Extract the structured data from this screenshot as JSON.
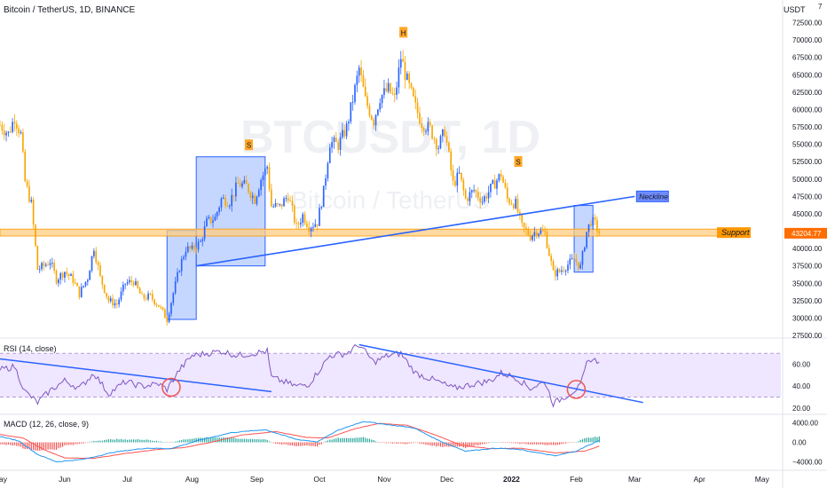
{
  "header": {
    "symbol_title": "Bitcoin / TetherUS, 1D, BINANCE",
    "currency": "USDT"
  },
  "watermark": {
    "line1": "BTCUSDT, 1D",
    "line2": "Bitcoin / TetherUS"
  },
  "colors": {
    "up": "#2962ff",
    "down": "#f7a600",
    "rsi_line": "#7e57c2",
    "rsi_band": "#efe6ff",
    "macd_line": "#2196f3",
    "signal_line": "#ff5252",
    "hist_pos": "#26a69a",
    "hist_neg": "#ef5350",
    "trendline": "#2962ff",
    "support_band": "#ffcc80",
    "box_fill": "#5c8dff",
    "label_bg": "#ff9800",
    "neckline_label_bg": "#6f8cff",
    "price_tag": "#ff6d00"
  },
  "chart_data": [
    {
      "type": "candlestick",
      "title": "Bitcoin / TetherUS, 1D, BINANCE",
      "x_axis": {
        "type": "date",
        "range": [
          "2021-05-01",
          "2022-05-10"
        ],
        "tick_labels": [
          "May",
          "Jun",
          "Jul",
          "Aug",
          "Sep",
          "Oct",
          "Nov",
          "Dec",
          "2022",
          "Feb",
          "Mar",
          "Apr",
          "May"
        ],
        "tick_dates": [
          "2021-05-01",
          "2021-06-01",
          "2021-07-01",
          "2021-08-01",
          "2021-09-01",
          "2021-10-01",
          "2021-11-01",
          "2021-12-01",
          "2022-01-01",
          "2022-02-01",
          "2022-03-01",
          "2022-04-01",
          "2022-05-01"
        ]
      },
      "y_axis": {
        "position": "right",
        "range": [
          27500,
          75000
        ],
        "unit": "USDT",
        "tick_values": [
          27500,
          30000,
          32500,
          35000,
          37500,
          40000,
          42500,
          45000,
          47500,
          50000,
          52500,
          55000,
          57500,
          60000,
          62500,
          65000,
          67500,
          70000,
          72500
        ],
        "tick_labels": [
          "27500.00",
          "30000.00",
          "32500.00",
          "35000.00",
          "37500.00",
          "40000.00",
          "42500.00",
          "45000.00",
          "47500.00",
          "50000.00",
          "52500.00",
          "55000.00",
          "57500.00",
          "60000.00",
          "62500.00",
          "65000.00",
          "67500.00",
          "70000.00",
          "72500.00"
        ],
        "top_partial_label": "7"
      },
      "grid": false,
      "close_series": [
        [
          "2021-05-01",
          57800
        ],
        [
          "2021-05-05",
          56500
        ],
        [
          "2021-05-08",
          58900
        ],
        [
          "2021-05-11",
          56400
        ],
        [
          "2021-05-13",
          49600
        ],
        [
          "2021-05-16",
          46400
        ],
        [
          "2021-05-19",
          37000
        ],
        [
          "2021-05-22",
          37500
        ],
        [
          "2021-05-25",
          38200
        ],
        [
          "2021-05-28",
          35600
        ],
        [
          "2021-06-01",
          36700
        ],
        [
          "2021-06-05",
          35500
        ],
        [
          "2021-06-08",
          33500
        ],
        [
          "2021-06-12",
          35800
        ],
        [
          "2021-06-15",
          40200
        ],
        [
          "2021-06-18",
          35800
        ],
        [
          "2021-06-22",
          32500
        ],
        [
          "2021-06-26",
          32000
        ],
        [
          "2021-06-30",
          35000
        ],
        [
          "2021-07-04",
          35300
        ],
        [
          "2021-07-08",
          32900
        ],
        [
          "2021-07-12",
          33100
        ],
        [
          "2021-07-16",
          31800
        ],
        [
          "2021-07-20",
          29800
        ],
        [
          "2021-07-23",
          33600
        ],
        [
          "2021-07-26",
          37300
        ],
        [
          "2021-07-29",
          40000
        ],
        [
          "2021-08-01",
          39800
        ],
        [
          "2021-08-05",
          40900
        ],
        [
          "2021-08-08",
          43800
        ],
        [
          "2021-08-12",
          44400
        ],
        [
          "2021-08-15",
          47100
        ],
        [
          "2021-08-19",
          46800
        ],
        [
          "2021-08-23",
          49300
        ],
        [
          "2021-08-27",
          49000
        ],
        [
          "2021-08-31",
          47100
        ],
        [
          "2021-09-03",
          50000
        ],
        [
          "2021-09-06",
          51800
        ],
        [
          "2021-09-08",
          46100
        ],
        [
          "2021-09-12",
          46000
        ],
        [
          "2021-09-16",
          47700
        ],
        [
          "2021-09-20",
          43000
        ],
        [
          "2021-09-23",
          44800
        ],
        [
          "2021-09-26",
          43200
        ],
        [
          "2021-09-30",
          43800
        ],
        [
          "2021-10-03",
          48200
        ],
        [
          "2021-10-06",
          55300
        ],
        [
          "2021-10-10",
          54900
        ],
        [
          "2021-10-14",
          57400
        ],
        [
          "2021-10-17",
          61500
        ],
        [
          "2021-10-20",
          65900
        ],
        [
          "2021-10-23",
          61300
        ],
        [
          "2021-10-27",
          58400
        ],
        [
          "2021-10-30",
          61800
        ],
        [
          "2021-11-03",
          62900
        ],
        [
          "2021-11-06",
          61500
        ],
        [
          "2021-11-09",
          67500
        ],
        [
          "2021-11-12",
          64100
        ],
        [
          "2021-11-16",
          60300
        ],
        [
          "2021-11-19",
          58100
        ],
        [
          "2021-11-23",
          57200
        ],
        [
          "2021-11-27",
          54700
        ],
        [
          "2021-11-30",
          57000
        ],
        [
          "2021-12-04",
          49300
        ],
        [
          "2021-12-07",
          50600
        ],
        [
          "2021-12-10",
          47100
        ],
        [
          "2021-12-14",
          48400
        ],
        [
          "2021-12-18",
          46900
        ],
        [
          "2021-12-22",
          48600
        ],
        [
          "2021-12-27",
          50700
        ],
        [
          "2021-12-30",
          47100
        ],
        [
          "2022-01-03",
          46400
        ],
        [
          "2022-01-06",
          43100
        ],
        [
          "2022-01-10",
          41800
        ],
        [
          "2022-01-13",
          42600
        ],
        [
          "2022-01-17",
          42200
        ],
        [
          "2022-01-21",
          36400
        ],
        [
          "2022-01-24",
          36700
        ],
        [
          "2022-01-28",
          37700
        ],
        [
          "2022-01-31",
          38500
        ],
        [
          "2022-02-03",
          37300
        ],
        [
          "2022-02-06",
          42400
        ],
        [
          "2022-02-08",
          44000
        ],
        [
          "2022-02-10",
          43500
        ],
        [
          "2022-02-12",
          42200
        ]
      ],
      "last_price_label": "43204.77",
      "annotations": {
        "pattern_labels": [
          {
            "text": "S",
            "date": "2021-08-28",
            "price": 54800
          },
          {
            "text": "H",
            "date": "2021-11-10",
            "price": 71000
          },
          {
            "text": "S",
            "date": "2022-01-04",
            "price": 52400
          }
        ],
        "neckline": {
          "label": "Neckline",
          "from": [
            "2021-08-03",
            37500
          ],
          "to": [
            "2022-03-01",
            47500
          ]
        },
        "support_zone": {
          "label": "Support",
          "from_price": 41800,
          "to_price": 42800
        },
        "boxes": [
          {
            "from": [
              "2021-07-20",
              29800
            ],
            "to": [
              "2021-08-03",
              42600
            ]
          },
          {
            "from": [
              "2021-08-03",
              37500
            ],
            "to": [
              "2021-09-05",
              53200
            ]
          },
          {
            "from": [
              "2022-01-31",
              36600
            ],
            "to": [
              "2022-02-09",
              46200
            ]
          }
        ]
      }
    },
    {
      "type": "line",
      "title": "RSI (14, close)",
      "y_axis": {
        "range": [
          15,
          80
        ],
        "tick_values": [
          20,
          40,
          60
        ],
        "tick_labels": [
          "20.00",
          "40.00",
          "60.00"
        ]
      },
      "bands": {
        "upper": 70,
        "lower": 30
      },
      "series": [
        {
          "values": [
            [
              "2021-05-01",
              55
            ],
            [
              "2021-05-08",
              58
            ],
            [
              "2021-05-13",
              35
            ],
            [
              "2021-05-19",
              25
            ],
            [
              "2021-05-25",
              36
            ],
            [
              "2021-06-01",
              45
            ],
            [
              "2021-06-08",
              38
            ],
            [
              "2021-06-15",
              52
            ],
            [
              "2021-06-22",
              33
            ],
            [
              "2021-06-30",
              44
            ],
            [
              "2021-07-08",
              40
            ],
            [
              "2021-07-16",
              42
            ],
            [
              "2021-07-20",
              37
            ],
            [
              "2021-07-26",
              55
            ],
            [
              "2021-08-01",
              68
            ],
            [
              "2021-08-08",
              70
            ],
            [
              "2021-08-15",
              72
            ],
            [
              "2021-08-23",
              68
            ],
            [
              "2021-09-06",
              72
            ],
            [
              "2021-09-08",
              48
            ],
            [
              "2021-09-20",
              40
            ],
            [
              "2021-09-26",
              42
            ],
            [
              "2021-10-06",
              68
            ],
            [
              "2021-10-14",
              70
            ],
            [
              "2021-10-20",
              78
            ],
            [
              "2021-10-27",
              62
            ],
            [
              "2021-11-03",
              68
            ],
            [
              "2021-11-09",
              70
            ],
            [
              "2021-11-16",
              52
            ],
            [
              "2021-11-27",
              44
            ],
            [
              "2021-12-04",
              38
            ],
            [
              "2021-12-14",
              42
            ],
            [
              "2021-12-22",
              45
            ],
            [
              "2021-12-27",
              52
            ],
            [
              "2022-01-03",
              48
            ],
            [
              "2022-01-10",
              38
            ],
            [
              "2022-01-17",
              44
            ],
            [
              "2022-01-21",
              24
            ],
            [
              "2022-01-28",
              32
            ],
            [
              "2022-02-03",
              40
            ],
            [
              "2022-02-06",
              60
            ],
            [
              "2022-02-08",
              65
            ],
            [
              "2022-02-12",
              62
            ]
          ]
        }
      ],
      "annotations": {
        "trendlines": [
          {
            "from": [
              "2021-05-01",
              65
            ],
            "to": [
              "2021-09-08",
              35
            ]
          },
          {
            "from": [
              "2021-10-20",
              78
            ],
            "to": [
              "2022-03-05",
              25
            ]
          }
        ],
        "circles": [
          [
            "2021-07-22",
            39
          ],
          [
            "2022-02-01",
            37
          ]
        ]
      }
    },
    {
      "type": "line",
      "title": "MACD (12, 26, close, 9)",
      "y_axis": {
        "range": [
          -5200,
          5200
        ],
        "tick_values": [
          -4000,
          0,
          4000
        ],
        "tick_labels": [
          "−4000.00",
          "0.00",
          "4000.00"
        ]
      },
      "series": [
        {
          "values": [
            [
              "2021-05-01",
              1200
            ],
            [
              "2021-05-10",
              300
            ],
            [
              "2021-05-19",
              -2500
            ],
            [
              "2021-05-28",
              -4000
            ],
            [
              "2021-06-10",
              -3500
            ],
            [
              "2021-06-25",
              -2000
            ],
            [
              "2021-07-10",
              -1200
            ],
            [
              "2021-07-22",
              -1300
            ],
            [
              "2021-08-05",
              500
            ],
            [
              "2021-08-20",
              2000
            ],
            [
              "2021-09-05",
              2600
            ],
            [
              "2021-09-20",
              600
            ],
            [
              "2021-09-30",
              100
            ],
            [
              "2021-10-10",
              2500
            ],
            [
              "2021-10-22",
              4300
            ],
            [
              "2021-11-05",
              3500
            ],
            [
              "2021-11-15",
              3000
            ],
            [
              "2021-11-28",
              200
            ],
            [
              "2021-12-10",
              -1800
            ],
            [
              "2021-12-25",
              -1200
            ],
            [
              "2022-01-05",
              -1500
            ],
            [
              "2022-01-22",
              -2800
            ],
            [
              "2022-02-01",
              -1800
            ],
            [
              "2022-02-12",
              400
            ]
          ]
        },
        {
          "values": [
            [
              "2021-05-01",
              1600
            ],
            [
              "2021-05-12",
              900
            ],
            [
              "2021-05-22",
              -1500
            ],
            [
              "2021-06-01",
              -3200
            ],
            [
              "2021-06-15",
              -3300
            ],
            [
              "2021-06-30",
              -2300
            ],
            [
              "2021-07-15",
              -1500
            ],
            [
              "2021-07-28",
              -1100
            ],
            [
              "2021-08-10",
              0
            ],
            [
              "2021-08-25",
              1500
            ],
            [
              "2021-09-10",
              2200
            ],
            [
              "2021-09-25",
              1000
            ],
            [
              "2021-10-05",
              900
            ],
            [
              "2021-10-18",
              2800
            ],
            [
              "2021-10-30",
              3900
            ],
            [
              "2021-11-12",
              3500
            ],
            [
              "2021-11-25",
              1600
            ],
            [
              "2021-12-08",
              -600
            ],
            [
              "2021-12-22",
              -1300
            ],
            [
              "2022-01-05",
              -1200
            ],
            [
              "2022-01-22",
              -2200
            ],
            [
              "2022-02-05",
              -1800
            ],
            [
              "2022-02-12",
              -800
            ]
          ]
        }
      ]
    }
  ],
  "pane_labels": {
    "rsi": "RSI (14, close)",
    "macd": "MACD (12, 26, close, 9)"
  }
}
